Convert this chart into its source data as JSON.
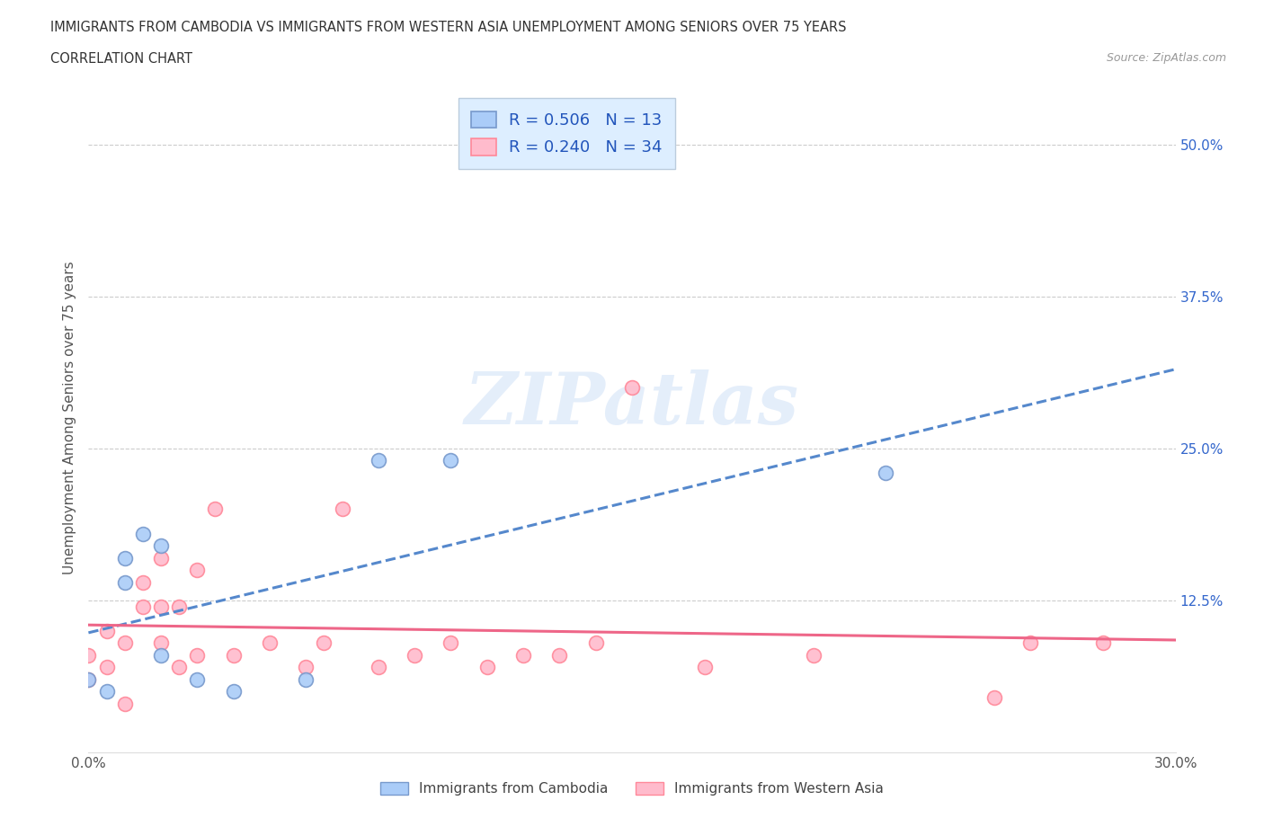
{
  "title_line1": "IMMIGRANTS FROM CAMBODIA VS IMMIGRANTS FROM WESTERN ASIA UNEMPLOYMENT AMONG SENIORS OVER 75 YEARS",
  "title_line2": "CORRELATION CHART",
  "source_text": "Source: ZipAtlas.com",
  "ylabel": "Unemployment Among Seniors over 75 years",
  "watermark": "ZIPatlas",
  "xlim": [
    0.0,
    0.3
  ],
  "ylim": [
    0.0,
    0.55
  ],
  "xticks": [
    0.0,
    0.05,
    0.1,
    0.15,
    0.2,
    0.25,
    0.3
  ],
  "xticklabels": [
    "0.0%",
    "",
    "",
    "",
    "",
    "",
    "30.0%"
  ],
  "yticks": [
    0.0,
    0.125,
    0.25,
    0.375,
    0.5
  ],
  "yticklabels": [
    "",
    "12.5%",
    "25.0%",
    "37.5%",
    "50.0%"
  ],
  "cambodia_color": "#aaccf8",
  "cambodia_edge_color": "#7799cc",
  "western_asia_color": "#ffbbcc",
  "western_asia_edge_color": "#ff8899",
  "cambodia_R": 0.506,
  "cambodia_N": 13,
  "western_asia_R": 0.24,
  "western_asia_N": 34,
  "cambodia_x": [
    0.0,
    0.005,
    0.01,
    0.01,
    0.015,
    0.02,
    0.02,
    0.03,
    0.04,
    0.06,
    0.08,
    0.1,
    0.22
  ],
  "cambodia_y": [
    0.06,
    0.05,
    0.14,
    0.16,
    0.18,
    0.17,
    0.08,
    0.06,
    0.05,
    0.06,
    0.24,
    0.24,
    0.23
  ],
  "western_asia_x": [
    0.0,
    0.0,
    0.005,
    0.005,
    0.01,
    0.01,
    0.015,
    0.015,
    0.02,
    0.02,
    0.02,
    0.025,
    0.025,
    0.03,
    0.03,
    0.035,
    0.04,
    0.05,
    0.06,
    0.065,
    0.07,
    0.08,
    0.09,
    0.1,
    0.11,
    0.12,
    0.13,
    0.14,
    0.15,
    0.17,
    0.2,
    0.25,
    0.26,
    0.28
  ],
  "western_asia_y": [
    0.06,
    0.08,
    0.07,
    0.1,
    0.04,
    0.09,
    0.12,
    0.14,
    0.09,
    0.12,
    0.16,
    0.07,
    0.12,
    0.08,
    0.15,
    0.2,
    0.08,
    0.09,
    0.07,
    0.09,
    0.2,
    0.07,
    0.08,
    0.09,
    0.07,
    0.08,
    0.08,
    0.09,
    0.3,
    0.07,
    0.08,
    0.045,
    0.09,
    0.09
  ],
  "grid_color": "#cccccc",
  "background_color": "#ffffff",
  "cambodia_trend_color": "#5588cc",
  "western_asia_trend_color": "#ee6688",
  "marker_size": 130,
  "legend_facecolor": "#ddeeff",
  "legend_edgecolor": "#bbccdd",
  "ytick_label_color": "#3366cc",
  "xtick_label_color": "#555555"
}
